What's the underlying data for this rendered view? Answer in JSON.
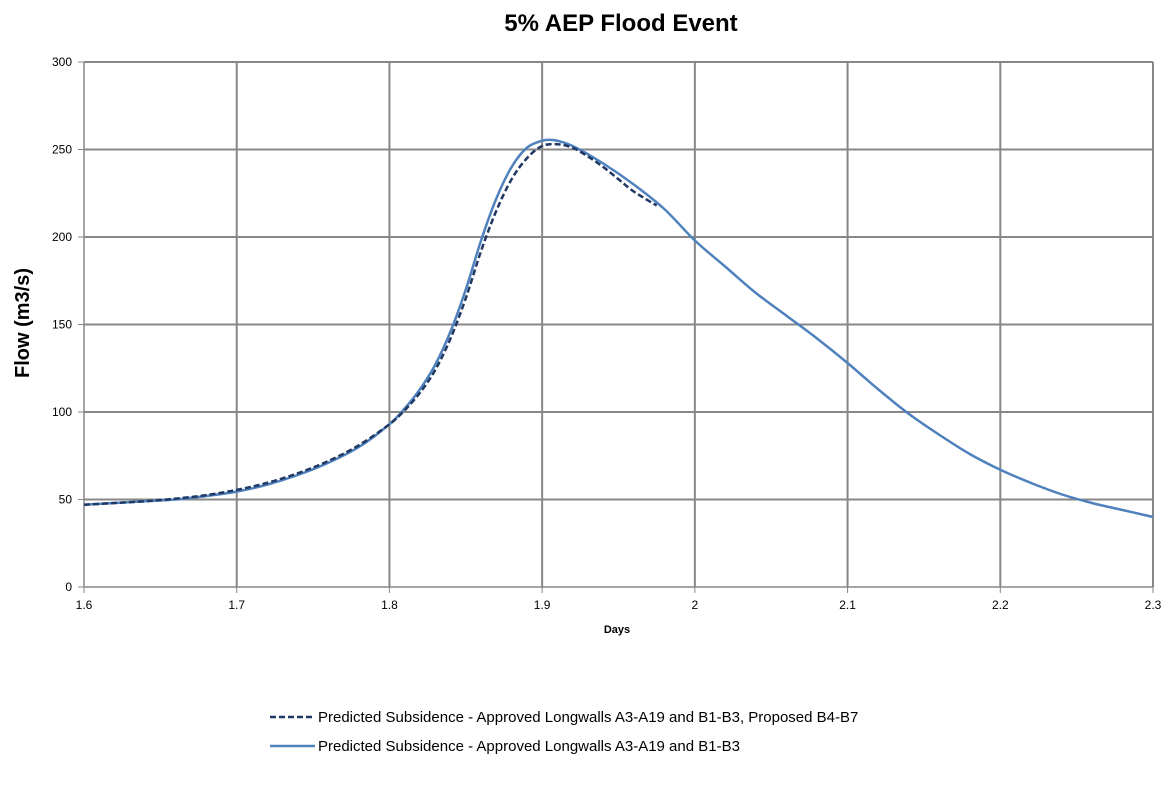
{
  "chart_data": {
    "type": "line",
    "title": "5% AEP Flood Event",
    "xlabel": "Days",
    "ylabel": "Flow (m3/s)",
    "xlim": [
      1.6,
      2.3
    ],
    "ylim": [
      0,
      300
    ],
    "x_ticks": [
      "1.6",
      "1.7",
      "1.8",
      "1.9",
      "2",
      "2.1",
      "2.2",
      "2.3"
    ],
    "y_ticks": [
      "0",
      "50",
      "100",
      "150",
      "200",
      "250",
      "300"
    ],
    "grid": true,
    "legend_position": "bottom",
    "series": [
      {
        "name": "Predicted Subsidence - Approved Longwalls A3-A19 and B1-B3, Proposed B4-B7",
        "style": "dashed",
        "color": "#1F3864",
        "x": [
          1.6,
          1.62,
          1.64,
          1.66,
          1.68,
          1.7,
          1.72,
          1.74,
          1.76,
          1.78,
          1.8,
          1.81,
          1.82,
          1.83,
          1.84,
          1.85,
          1.86,
          1.87,
          1.88,
          1.89,
          1.9,
          1.91,
          1.92,
          1.93,
          1.94,
          1.95,
          1.96,
          1.975
        ],
        "y": [
          47,
          48,
          49,
          50.5,
          52.5,
          55.5,
          59.5,
          65,
          72,
          81,
          93,
          101,
          111,
          124,
          142,
          165,
          192,
          215,
          233,
          245,
          252,
          253,
          251,
          246,
          240,
          233,
          226,
          218
        ]
      },
      {
        "name": "Predicted Subsidence - Approved Longwalls A3-A19 and B1-B3",
        "style": "solid",
        "color": "#4F81BD",
        "x": [
          1.6,
          1.62,
          1.64,
          1.66,
          1.68,
          1.7,
          1.72,
          1.74,
          1.76,
          1.78,
          1.8,
          1.81,
          1.82,
          1.83,
          1.84,
          1.85,
          1.86,
          1.87,
          1.88,
          1.89,
          1.9,
          1.905,
          1.91,
          1.92,
          1.94,
          1.96,
          1.98,
          2.0,
          2.02,
          2.04,
          2.06,
          2.08,
          2.1,
          2.12,
          2.14,
          2.16,
          2.18,
          2.2,
          2.22,
          2.24,
          2.26,
          2.28,
          2.3
        ],
        "y": [
          47,
          48,
          49,
          50,
          52,
          54.5,
          58.5,
          64,
          71,
          80,
          93,
          102,
          113,
          127,
          146,
          170,
          198,
          222,
          240,
          251,
          255,
          255.5,
          255,
          252,
          242,
          230,
          216,
          198,
          183,
          168,
          155,
          142,
          128,
          113,
          99,
          87,
          76,
          67,
          59.5,
          53,
          48,
          44,
          40
        ]
      }
    ]
  }
}
